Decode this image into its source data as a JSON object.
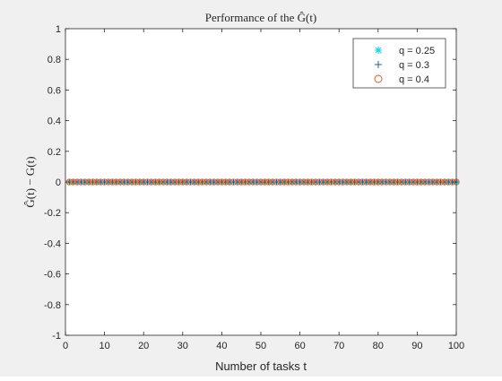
{
  "chart_data": {
    "type": "scatter",
    "title": "Performance of the Ĝ(t)",
    "xlabel": "Number of tasks t",
    "ylabel": "Ĝ(t) − G(t)",
    "xlim": [
      0,
      100
    ],
    "ylim": [
      -1,
      1
    ],
    "xticks": [
      "0",
      "10",
      "20",
      "30",
      "40",
      "50",
      "60",
      "70",
      "80",
      "90",
      "100"
    ],
    "yticks": [
      "-1",
      "-0.8",
      "-0.6",
      "-0.4",
      "-0.2",
      "0",
      "0.2",
      "0.4",
      "0.6",
      "0.8",
      "1"
    ],
    "grid": false,
    "legend_position": "top-right",
    "x": [
      1,
      2,
      3,
      4,
      5,
      6,
      7,
      8,
      9,
      10,
      11,
      12,
      13,
      14,
      15,
      16,
      17,
      18,
      19,
      20,
      21,
      22,
      23,
      24,
      25,
      26,
      27,
      28,
      29,
      30,
      31,
      32,
      33,
      34,
      35,
      36,
      37,
      38,
      39,
      40,
      41,
      42,
      43,
      44,
      45,
      46,
      47,
      48,
      49,
      50,
      51,
      52,
      53,
      54,
      55,
      56,
      57,
      58,
      59,
      60,
      61,
      62,
      63,
      64,
      65,
      66,
      67,
      68,
      69,
      70,
      71,
      72,
      73,
      74,
      75,
      76,
      77,
      78,
      79,
      80,
      81,
      82,
      83,
      84,
      85,
      86,
      87,
      88,
      89,
      90,
      91,
      92,
      93,
      94,
      95,
      96,
      97,
      98,
      99,
      100
    ],
    "series": [
      {
        "name": "q = 0.25",
        "marker": "asterisk",
        "color": "#00d5e8",
        "y_constant": 0
      },
      {
        "name": "q = 0.3",
        "marker": "plus",
        "color": "#2b5f8a",
        "y_constant": 0
      },
      {
        "name": "q = 0.4",
        "marker": "circle",
        "color": "#d9541a",
        "y_constant": 0
      }
    ]
  }
}
